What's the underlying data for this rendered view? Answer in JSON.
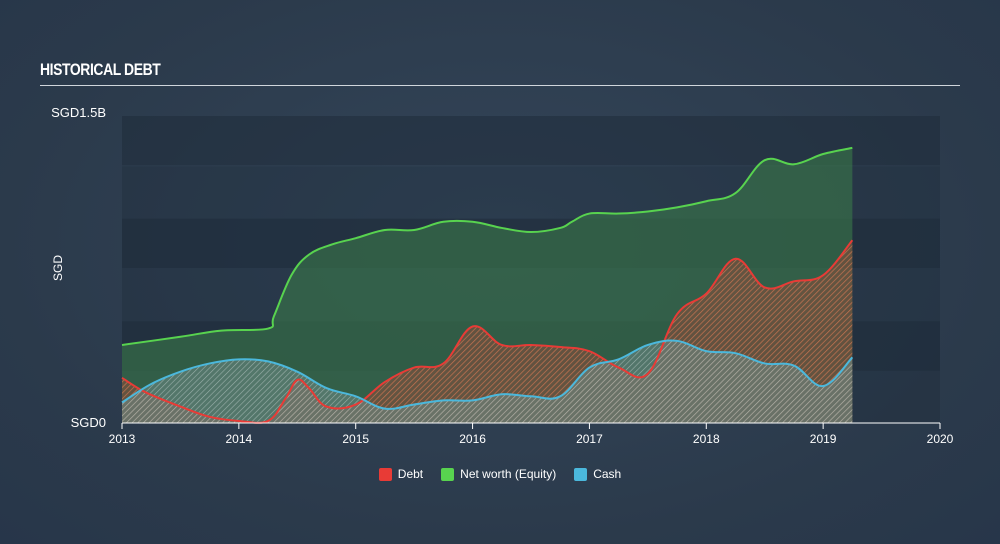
{
  "header": {
    "title": "HISTORICAL DEBT"
  },
  "chart_data": {
    "type": "area",
    "title": "HISTORICAL DEBT",
    "ylabel": "SGD",
    "xlabel": "",
    "ylim": [
      0,
      1.5
    ],
    "xlim": [
      2013,
      2020
    ],
    "y_unit": "SGD billions",
    "y_tick_labels": [
      "SGD0",
      "SGD1.5B"
    ],
    "x_ticks": [
      2013,
      2014,
      2015,
      2016,
      2017,
      2018,
      2019,
      2020
    ],
    "grid": true,
    "legend_position": "bottom-center",
    "series": [
      {
        "name": "Net worth (Equity)",
        "color": "#58d34f",
        "x": [
          2013,
          2013.5,
          2013.85,
          2014.25,
          2014.3,
          2014.45,
          2014.6,
          2014.8,
          2015,
          2015.25,
          2015.5,
          2015.75,
          2016,
          2016.25,
          2016.5,
          2016.75,
          2016.85,
          2017,
          2017.25,
          2017.5,
          2017.75,
          2018,
          2018.25,
          2018.5,
          2018.75,
          2019,
          2019.25
        ],
        "values": [
          0.38,
          0.42,
          0.45,
          0.46,
          0.52,
          0.72,
          0.82,
          0.87,
          0.9,
          0.94,
          0.94,
          0.98,
          0.98,
          0.95,
          0.93,
          0.95,
          0.98,
          1.02,
          1.02,
          1.03,
          1.05,
          1.08,
          1.12,
          1.28,
          1.26,
          1.31,
          1.34
        ]
      },
      {
        "name": "Debt",
        "color": "#e83b36",
        "x": [
          2013,
          2013.2,
          2013.5,
          2013.75,
          2014,
          2014.25,
          2014.4,
          2014.5,
          2014.6,
          2014.75,
          2015,
          2015.25,
          2015.5,
          2015.75,
          2016,
          2016.25,
          2016.5,
          2016.75,
          2017,
          2017.25,
          2017.5,
          2017.75,
          2018,
          2018.25,
          2018.5,
          2018.75,
          2019,
          2019.25
        ],
        "values": [
          0.22,
          0.15,
          0.08,
          0.03,
          0.01,
          0.01,
          0.12,
          0.21,
          0.17,
          0.08,
          0.09,
          0.2,
          0.27,
          0.29,
          0.47,
          0.38,
          0.38,
          0.37,
          0.35,
          0.27,
          0.24,
          0.53,
          0.63,
          0.8,
          0.66,
          0.69,
          0.72,
          0.89
        ]
      },
      {
        "name": "Cash",
        "color": "#4bb8dc",
        "x": [
          2013,
          2013.25,
          2013.5,
          2013.75,
          2014,
          2014.25,
          2014.5,
          2014.75,
          2015,
          2015.25,
          2015.5,
          2015.75,
          2016,
          2016.25,
          2016.5,
          2016.75,
          2017,
          2017.25,
          2017.5,
          2017.75,
          2018,
          2018.25,
          2018.5,
          2018.75,
          2019,
          2019.25
        ],
        "values": [
          0.1,
          0.19,
          0.25,
          0.29,
          0.31,
          0.3,
          0.25,
          0.17,
          0.13,
          0.07,
          0.09,
          0.11,
          0.11,
          0.14,
          0.13,
          0.13,
          0.27,
          0.31,
          0.38,
          0.4,
          0.35,
          0.34,
          0.29,
          0.28,
          0.18,
          0.32
        ]
      }
    ]
  },
  "legend": {
    "items": [
      {
        "label": "Debt",
        "color": "#e83b36"
      },
      {
        "label": "Net worth (Equity)",
        "color": "#58d34f"
      },
      {
        "label": "Cash",
        "color": "#4bb8dc"
      }
    ]
  }
}
